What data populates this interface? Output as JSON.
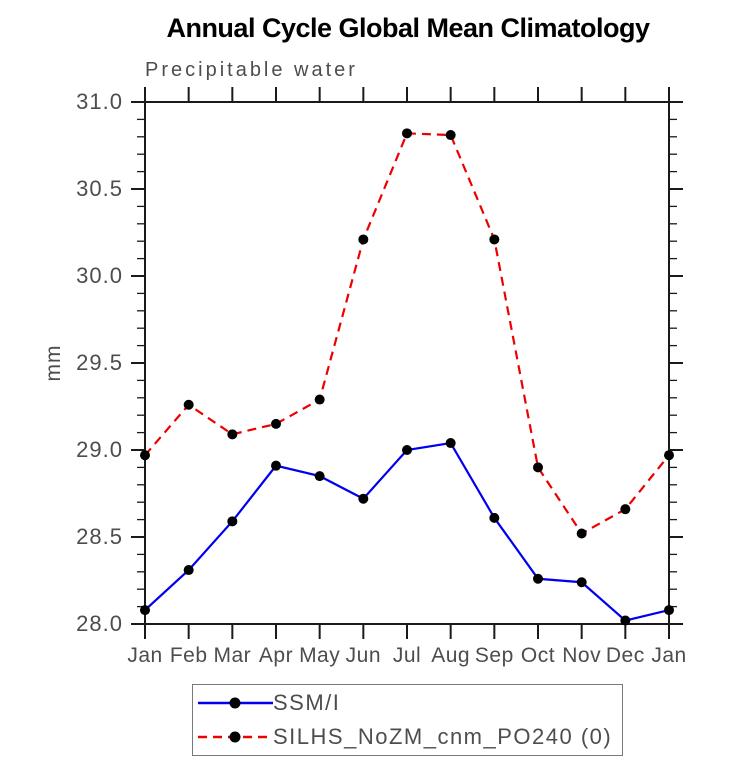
{
  "title": "Annual Cycle Global Mean Climatology",
  "subtitle": "Precipitable water",
  "chart_data": {
    "type": "line",
    "categories": [
      "Jan",
      "Feb",
      "Mar",
      "Apr",
      "May",
      "Jun",
      "Jul",
      "Aug",
      "Sep",
      "Oct",
      "Nov",
      "Dec",
      "Jan"
    ],
    "series": [
      {
        "name": "SSM/I",
        "color": "#0000ee",
        "style": "solid",
        "values": [
          28.08,
          28.31,
          28.59,
          28.91,
          28.85,
          28.72,
          29.0,
          29.04,
          28.61,
          28.26,
          28.24,
          28.02,
          28.08
        ]
      },
      {
        "name": "SILHS_NoZM_cnm_PO240 (0)",
        "color": "#ee0000",
        "style": "dashed",
        "values": [
          28.97,
          29.26,
          29.09,
          29.15,
          29.29,
          30.21,
          30.82,
          30.81,
          30.21,
          28.9,
          28.52,
          28.66,
          28.97
        ]
      }
    ],
    "title": "Annual Cycle Global Mean Climatology",
    "subtitle": "Precipitable water",
    "xlabel": "",
    "ylabel": "mm",
    "ylim": [
      28.0,
      31.0
    ],
    "y_major_step": 0.5,
    "y_minor_step": 0.1,
    "grid": false,
    "legend_position": "bottom",
    "marker": {
      "shape": "circle",
      "color": "#000000",
      "radius": 5
    }
  },
  "colors": {
    "axis": "#1a1a1a",
    "tick_text": "#4d4d4d",
    "legend_border": "#7a7a7a"
  }
}
